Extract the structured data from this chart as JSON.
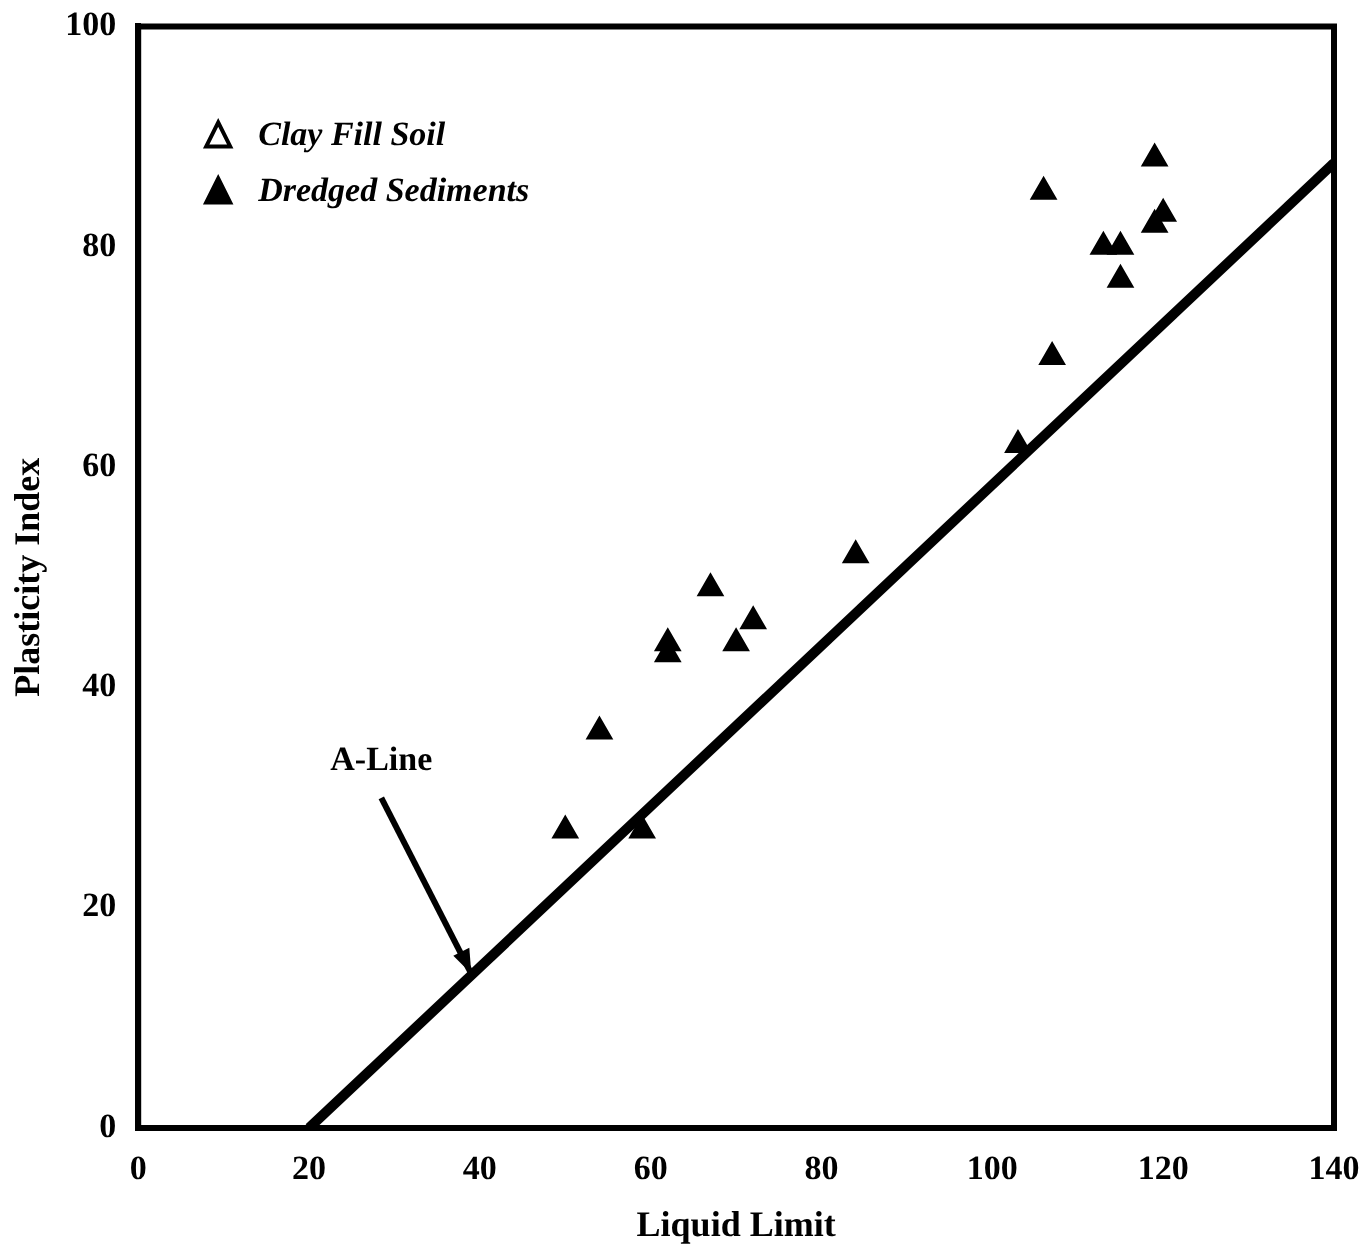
{
  "chart_data": {
    "type": "scatter",
    "xlabel": "Liquid Limit",
    "ylabel": "Plasticity Index",
    "xlim": [
      0,
      140
    ],
    "xticks": [
      0,
      20,
      40,
      60,
      80,
      100,
      120,
      140
    ],
    "ylim": [
      0,
      100
    ],
    "yticks": [
      0,
      20,
      40,
      60,
      80,
      100
    ],
    "grid": false,
    "legend": "top left",
    "marker": "triangle",
    "series": [
      {
        "name": "Clay Fill Soil",
        "color": "#ffffff"
      },
      {
        "name": "Dredged Sediments",
        "color": "#000000",
        "x": [
          50,
          54,
          59,
          62,
          62,
          67,
          70,
          72,
          84,
          103,
          106,
          107,
          113,
          115,
          115,
          119,
          119,
          120
        ],
        "values": [
          27,
          36,
          27,
          43,
          44,
          49,
          44,
          46,
          52,
          62,
          85,
          70,
          80,
          80,
          77,
          88,
          82,
          83
        ]
      },
      {
        "type": "line",
        "color": "#000000",
        "marker": "none",
        "x": [
          20,
          140
        ],
        "values": [
          0,
          87.6
        ]
      }
    ],
    "annotations": [
      {
        "text": "A-Line",
        "x": 39,
        "y": 14
      }
    ]
  }
}
